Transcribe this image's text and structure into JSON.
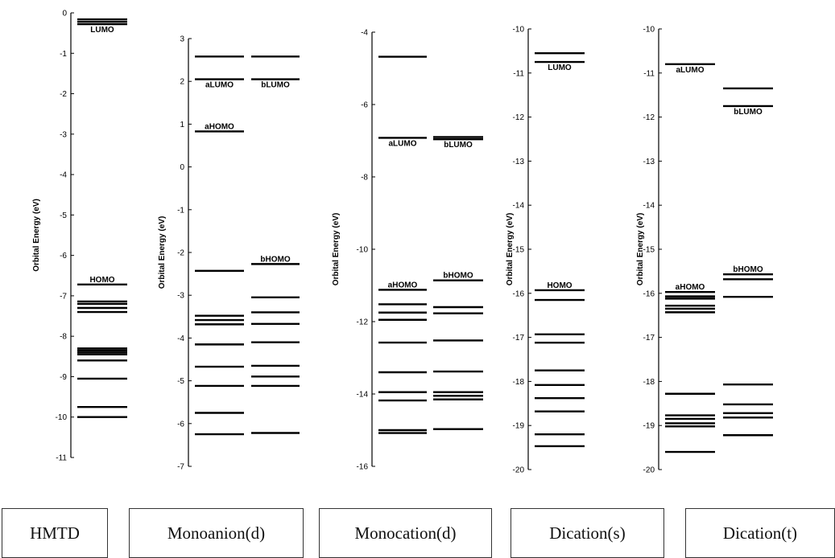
{
  "chart_data": [
    {
      "type": "energy-level",
      "caption": "HMTD",
      "ylabel": "Orbital Energy (eV)",
      "ylim": [
        -11,
        0
      ],
      "ticks": [
        0,
        -1,
        -2,
        -3,
        -4,
        -5,
        -6,
        -7,
        -8,
        -9,
        -10,
        -11
      ],
      "columns": [
        {
          "levels": [
            -0.16,
            -0.22,
            -0.28,
            -6.72,
            -7.14,
            -7.2,
            -7.3,
            -7.4,
            -8.3,
            -8.35,
            -8.4,
            -8.45,
            -8.6,
            -9.05,
            -9.75,
            -10.0
          ],
          "labels": [
            {
              "text": "LUMO",
              "value": -0.28
            },
            {
              "text": "HOMO",
              "value": -6.72
            }
          ]
        }
      ]
    },
    {
      "type": "energy-level",
      "caption": "Monoanion(d)",
      "ylabel": "Orbital Energy (eV)",
      "ylim": [
        -7,
        3
      ],
      "ticks": [
        3,
        2,
        1,
        0,
        -1,
        -2,
        -3,
        -4,
        -5,
        -6,
        -7
      ],
      "columns": [
        {
          "levels": [
            2.58,
            2.05,
            0.83,
            -2.43,
            -3.48,
            -3.58,
            -3.68,
            -4.15,
            -4.67,
            -5.12,
            -5.75,
            -6.25
          ],
          "labels": [
            {
              "text": "aLUMO",
              "value": 2.05
            },
            {
              "text": "aHOMO",
              "value": 0.83
            }
          ]
        },
        {
          "levels": [
            2.58,
            2.05,
            -2.27,
            -3.05,
            -3.4,
            -3.67,
            -4.1,
            -4.65,
            -4.9,
            -5.12,
            -6.22
          ],
          "labels": [
            {
              "text": "bLUMO",
              "value": 2.05
            },
            {
              "text": "bHOMO",
              "value": -2.27
            }
          ]
        }
      ]
    },
    {
      "type": "energy-level",
      "caption": "Monocation(d)",
      "ylabel": "Orbital Energy (eV)",
      "ylim": [
        -16,
        -4
      ],
      "ticks": [
        -4,
        -6,
        -8,
        -10,
        -12,
        -14,
        -16
      ],
      "columns": [
        {
          "levels": [
            -4.68,
            -6.92,
            -11.12,
            -11.52,
            -11.75,
            -11.95,
            -12.58,
            -13.4,
            -13.95,
            -14.18,
            -15.0,
            -15.08
          ],
          "labels": [
            {
              "text": "aLUMO",
              "value": -6.92
            },
            {
              "text": "aHOMO",
              "value": -11.12
            }
          ]
        },
        {
          "levels": [
            -6.9,
            -6.96,
            -10.86,
            -11.6,
            -11.77,
            -12.52,
            -13.38,
            -13.95,
            -14.05,
            -14.15,
            -14.97
          ],
          "labels": [
            {
              "text": "bLUMO",
              "value": -6.96
            },
            {
              "text": "bHOMO",
              "value": -10.86
            }
          ]
        }
      ]
    },
    {
      "type": "energy-level",
      "caption": "Dication(s)",
      "ylabel": "Orbital Energy (eV)",
      "ylim": [
        -20,
        -10
      ],
      "ticks": [
        -10,
        -11,
        -12,
        -13,
        -14,
        -15,
        -16,
        -17,
        -18,
        -19,
        -20
      ],
      "columns": [
        {
          "levels": [
            -10.55,
            -10.75,
            -15.93,
            -16.15,
            -16.93,
            -17.12,
            -17.75,
            -18.08,
            -18.38,
            -18.68,
            -19.2,
            -19.47
          ],
          "labels": [
            {
              "text": "LUMO",
              "value": -10.75
            },
            {
              "text": "HOMO",
              "value": -15.93
            }
          ]
        }
      ]
    },
    {
      "type": "energy-level",
      "caption": "Dication(t)",
      "ylabel": "Orbital Energy (eV)",
      "ylim": [
        -20,
        -10
      ],
      "ticks": [
        -10,
        -11,
        -12,
        -13,
        -14,
        -15,
        -16,
        -17,
        -18,
        -19,
        -20
      ],
      "columns": [
        {
          "levels": [
            -10.8,
            -15.97,
            -16.07,
            -16.12,
            -16.28,
            -16.35,
            -16.43,
            -18.28,
            -18.77,
            -18.85,
            -18.95,
            -19.02,
            -19.6
          ],
          "labels": [
            {
              "text": "aLUMO",
              "value": -10.8
            },
            {
              "text": "aHOMO",
              "value": -15.97
            }
          ]
        },
        {
          "levels": [
            -11.35,
            -11.75,
            -15.57,
            -15.68,
            -16.08,
            -18.07,
            -18.52,
            -18.72,
            -18.82,
            -19.22
          ],
          "labels": [
            {
              "text": "bLUMO",
              "value": -11.75
            },
            {
              "text": "bHOMO",
              "value": -15.57
            }
          ]
        }
      ]
    }
  ]
}
